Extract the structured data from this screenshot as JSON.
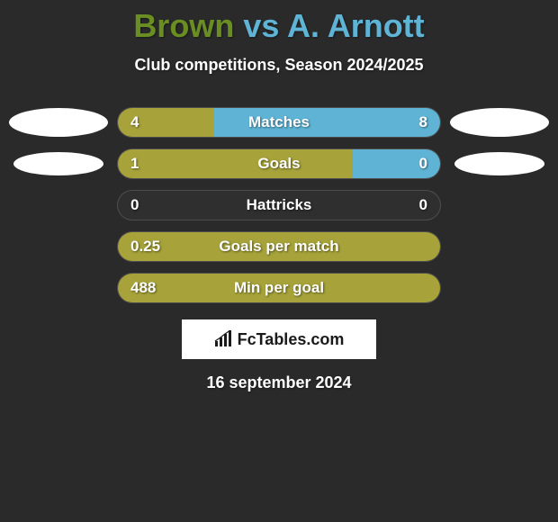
{
  "title": {
    "player1": "Brown",
    "vs": " vs ",
    "player2": "A. Arnott",
    "player1_color": "#6b8e23",
    "player2_color": "#5fb4d6",
    "fontsize": 36
  },
  "subtitle": "Club competitions, Season 2024/2025",
  "colors": {
    "background": "#2a2a2a",
    "left_fill": "#a7a33a",
    "right_fill": "#5fb4d6",
    "track_empty": "#2f2f2f",
    "text": "#ffffff",
    "ellipse": "#ffffff"
  },
  "bar_style": {
    "height": 34,
    "border_radius": 17,
    "row_gap": 12,
    "label_fontsize": 17,
    "value_fontsize": 17
  },
  "rows": [
    {
      "label": "Matches",
      "left_value": "4",
      "right_value": "8",
      "left_pct": 30,
      "right_pct": 70,
      "left_ellipse": "large",
      "right_ellipse": "large"
    },
    {
      "label": "Goals",
      "left_value": "1",
      "right_value": "0",
      "left_pct": 73,
      "right_pct": 27,
      "left_ellipse": "small",
      "right_ellipse": "small"
    },
    {
      "label": "Hattricks",
      "left_value": "0",
      "right_value": "0",
      "left_pct": 0,
      "right_pct": 0,
      "left_ellipse": null,
      "right_ellipse": null
    },
    {
      "label": "Goals per match",
      "left_value": "0.25",
      "right_value": "",
      "left_pct": 100,
      "right_pct": 0,
      "left_ellipse": null,
      "right_ellipse": null
    },
    {
      "label": "Min per goal",
      "left_value": "488",
      "right_value": "",
      "left_pct": 100,
      "right_pct": 0,
      "left_ellipse": null,
      "right_ellipse": null
    }
  ],
  "brand": "FcTables.com",
  "date": "16 september 2024"
}
